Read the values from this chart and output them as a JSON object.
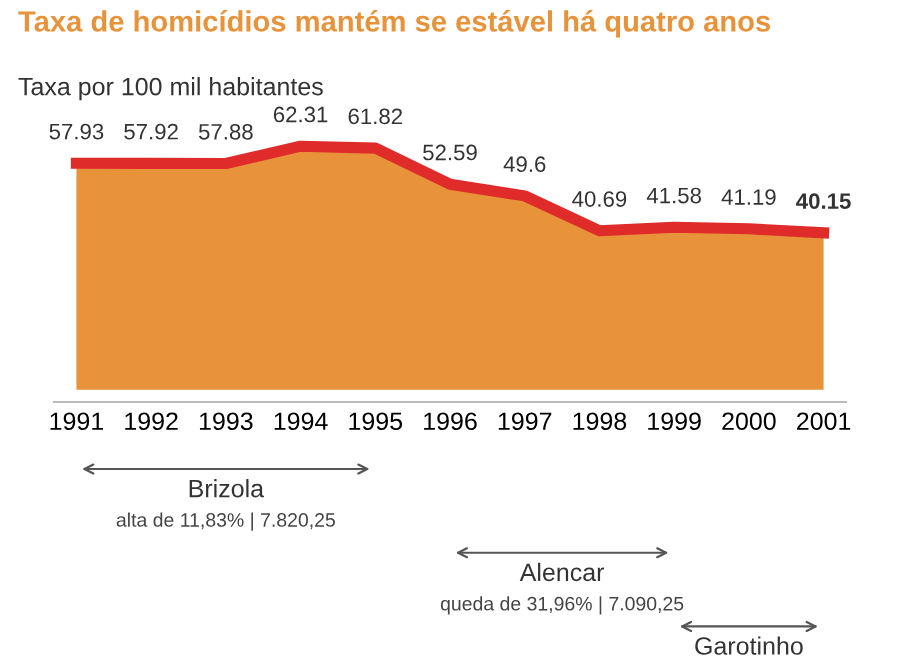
{
  "chart_data": {
    "type": "area",
    "title": "Taxa de homicídios mantém se estável há quatro anos",
    "subtitle": "Taxa por 100 mil habitantes",
    "categories": [
      "1991",
      "1992",
      "1993",
      "1994",
      "1995",
      "1996",
      "1997",
      "1998",
      "1999",
      "2000",
      "2001"
    ],
    "series": [
      {
        "color": "#e8923a",
        "values": [
          57.93,
          57.92,
          57.88,
          62.31,
          61.82,
          52.59,
          49.6,
          40.69,
          41.58,
          41.19,
          40.15
        ]
      }
    ],
    "tick_labels": "x",
    "data_labels": true,
    "grid": false,
    "legend": false,
    "annotations": [
      "Brizola",
      "alta de 11,83% | 7.820,25",
      "Alencar",
      "queda de 31,96% | 7.090,25",
      "Garotinho"
    ]
  }
}
